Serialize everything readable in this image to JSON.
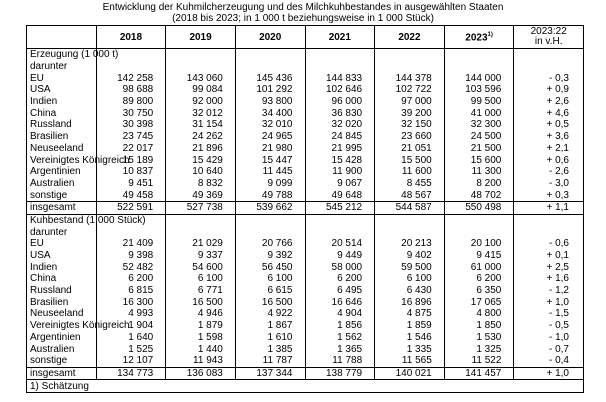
{
  "title": "Entwicklung der Kuhmilcherzeugung und des Milchkuhbestandes in ausgewählten Staaten",
  "subtitle": "(2018 bis 2023; in 1 000 t beziehungsweise in 1 000 Stück)",
  "header": {
    "years": [
      "2018",
      "2019",
      "2020",
      "2021",
      "2022",
      "2023"
    ],
    "note": "1)",
    "change": [
      "2023:22",
      "in v.H."
    ]
  },
  "sections": [
    {
      "label": "Erzeugung (1 000 t)",
      "sub": "darunter",
      "rows": [
        {
          "label": "EU",
          "values": [
            "142 258",
            "143 060",
            "145 436",
            "144 833",
            "144 378",
            "144 000",
            "- 0,3"
          ]
        },
        {
          "label": "USA",
          "values": [
            "98 688",
            "99 084",
            "101 292",
            "102 646",
            "102 722",
            "103 596",
            "+ 0,9"
          ]
        },
        {
          "label": "Indien",
          "values": [
            "89 800",
            "92 000",
            "93 800",
            "96 000",
            "97 000",
            "99 500",
            "+ 2,6"
          ]
        },
        {
          "label": "China",
          "values": [
            "30 750",
            "32 012",
            "34 400",
            "36 830",
            "39 200",
            "41 000",
            "+ 4,6"
          ]
        },
        {
          "label": "Russland",
          "values": [
            "30 398",
            "31 154",
            "32 010",
            "32 020",
            "32 150",
            "32 300",
            "+ 0,5"
          ]
        },
        {
          "label": "Brasilien",
          "values": [
            "23 745",
            "24 262",
            "24 965",
            "24 845",
            "23 660",
            "24 500",
            "+ 3,6"
          ]
        },
        {
          "label": "Neuseeland",
          "values": [
            "22 017",
            "21 896",
            "21 980",
            "21 995",
            "21 051",
            "21 500",
            "+ 2,1"
          ]
        },
        {
          "label": "Vereinigtes Königreich",
          "values": [
            "15 189",
            "15 429",
            "15 447",
            "15 428",
            "15 500",
            "15 600",
            "+ 0,6"
          ]
        },
        {
          "label": "Argentinien",
          "values": [
            "10 837",
            "10 640",
            "11 445",
            "11 900",
            "11 600",
            "11 300",
            "- 2,6"
          ]
        },
        {
          "label": "Australien",
          "values": [
            "9 451",
            "8 832",
            "9 099",
            "9 067",
            "8 455",
            "8 200",
            "- 3,0"
          ]
        },
        {
          "label": "sonstige",
          "values": [
            "49 458",
            "49 369",
            "49 788",
            "49 648",
            "48 567",
            "48 702",
            "+ 0,3"
          ]
        }
      ],
      "total": {
        "label": "insgesamt",
        "values": [
          "522 591",
          "527 738",
          "539 662",
          "545 212",
          "544 587",
          "550 498",
          "+ 1,1"
        ]
      }
    },
    {
      "label": "Kuhbestand (1 000 Stück)",
      "sub": "darunter",
      "rows": [
        {
          "label": "EU",
          "values": [
            "21 409",
            "21 029",
            "20 766",
            "20 514",
            "20 213",
            "20 100",
            "- 0,6"
          ]
        },
        {
          "label": "USA",
          "values": [
            "9 398",
            "9 337",
            "9 392",
            "9 449",
            "9 402",
            "9 415",
            "+ 0,1"
          ]
        },
        {
          "label": "Indien",
          "values": [
            "52 482",
            "54 600",
            "56 450",
            "58 000",
            "59 500",
            "61 000",
            "+ 2,5"
          ]
        },
        {
          "label": "China",
          "values": [
            "6 200",
            "6 100",
            "6 100",
            "6 200",
            "6 100",
            "6 200",
            "+ 1,6"
          ]
        },
        {
          "label": "Russland",
          "values": [
            "6 815",
            "6 771",
            "6 615",
            "6 495",
            "6 430",
            "6 350",
            "- 1,2"
          ]
        },
        {
          "label": "Brasilien",
          "values": [
            "16 300",
            "16 500",
            "16 500",
            "16 646",
            "16 896",
            "17 065",
            "+ 1,0"
          ]
        },
        {
          "label": "Neuseeland",
          "values": [
            "4 993",
            "4 946",
            "4 922",
            "4 904",
            "4 875",
            "4 800",
            "- 1,5"
          ]
        },
        {
          "label": "Vereinigtes Königreich",
          "values": [
            "1 904",
            "1 879",
            "1 867",
            "1 856",
            "1 859",
            "1 850",
            "- 0,5"
          ]
        },
        {
          "label": "Argentinien",
          "values": [
            "1 640",
            "1 598",
            "1 610",
            "1 562",
            "1 546",
            "1 530",
            "- 1,0"
          ]
        },
        {
          "label": "Australien",
          "values": [
            "1 525",
            "1 440",
            "1 385",
            "1 365",
            "1 335",
            "1 325",
            "- 0,7"
          ]
        },
        {
          "label": "sonstige",
          "values": [
            "12 107",
            "11 943",
            "11 787",
            "11 788",
            "11 565",
            "11 522",
            "- 0,4"
          ]
        }
      ],
      "total": {
        "label": "insgesamt",
        "values": [
          "134 773",
          "136 083",
          "137 344",
          "138 779",
          "140 021",
          "141 457",
          "+ 1,0"
        ]
      }
    }
  ],
  "footnote": "1) Schätzung"
}
